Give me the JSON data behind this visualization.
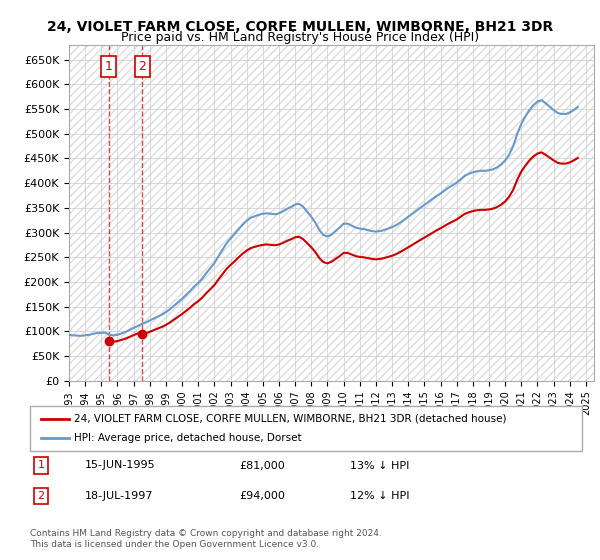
{
  "title1": "24, VIOLET FARM CLOSE, CORFE MULLEN, WIMBORNE, BH21 3DR",
  "title2": "Price paid vs. HM Land Registry's House Price Index (HPI)",
  "ylabel_ticks": [
    "£0",
    "£50K",
    "£100K",
    "£150K",
    "£200K",
    "£250K",
    "£300K",
    "£350K",
    "£400K",
    "£450K",
    "£500K",
    "£550K",
    "£600K",
    "£650K"
  ],
  "ytick_values": [
    0,
    50000,
    100000,
    150000,
    200000,
    250000,
    300000,
    350000,
    400000,
    450000,
    500000,
    550000,
    600000,
    650000
  ],
  "ylim": [
    0,
    680000
  ],
  "xlim_start": 1993.0,
  "xlim_end": 2025.5,
  "sale1_year": 1995.45,
  "sale1_price": 81000,
  "sale2_year": 1997.54,
  "sale2_price": 94000,
  "sale1_label": "1",
  "sale2_label": "2",
  "legend_line1": "24, VIOLET FARM CLOSE, CORFE MULLEN, WIMBORNE, BH21 3DR (detached house)",
  "legend_line2": "HPI: Average price, detached house, Dorset",
  "table_row1": "1    15-JUN-1995    £81,000    13% ↓ HPI",
  "table_row2": "2    18-JUL-1997    £94,000    12% ↓ HPI",
  "footer": "Contains HM Land Registry data © Crown copyright and database right 2024.\nThis data is licensed under the Open Government Licence v3.0.",
  "line_color_red": "#cc0000",
  "line_color_blue": "#6699cc",
  "bg_hatch_color": "#e8e8e8",
  "grid_color": "#cccccc",
  "hpi_data": {
    "years": [
      1993.0,
      1993.25,
      1993.5,
      1993.75,
      1994.0,
      1994.25,
      1994.5,
      1994.75,
      1995.0,
      1995.25,
      1995.5,
      1995.75,
      1996.0,
      1996.25,
      1996.5,
      1996.75,
      1997.0,
      1997.25,
      1997.5,
      1997.75,
      1998.0,
      1998.25,
      1998.5,
      1998.75,
      1999.0,
      1999.25,
      1999.5,
      1999.75,
      2000.0,
      2000.25,
      2000.5,
      2000.75,
      2001.0,
      2001.25,
      2001.5,
      2001.75,
      2002.0,
      2002.25,
      2002.5,
      2002.75,
      2003.0,
      2003.25,
      2003.5,
      2003.75,
      2004.0,
      2004.25,
      2004.5,
      2004.75,
      2005.0,
      2005.25,
      2005.5,
      2005.75,
      2006.0,
      2006.25,
      2006.5,
      2006.75,
      2007.0,
      2007.25,
      2007.5,
      2007.75,
      2008.0,
      2008.25,
      2008.5,
      2008.75,
      2009.0,
      2009.25,
      2009.5,
      2009.75,
      2010.0,
      2010.25,
      2010.5,
      2010.75,
      2011.0,
      2011.25,
      2011.5,
      2011.75,
      2012.0,
      2012.25,
      2012.5,
      2012.75,
      2013.0,
      2013.25,
      2013.5,
      2013.75,
      2014.0,
      2014.25,
      2014.5,
      2014.75,
      2015.0,
      2015.25,
      2015.5,
      2015.75,
      2016.0,
      2016.25,
      2016.5,
      2016.75,
      2017.0,
      2017.25,
      2017.5,
      2017.75,
      2018.0,
      2018.25,
      2018.5,
      2018.75,
      2019.0,
      2019.25,
      2019.5,
      2019.75,
      2020.0,
      2020.25,
      2020.5,
      2020.75,
      2021.0,
      2021.25,
      2021.5,
      2021.75,
      2022.0,
      2022.25,
      2022.5,
      2022.75,
      2023.0,
      2023.25,
      2023.5,
      2023.75,
      2024.0,
      2024.25,
      2024.5
    ],
    "values": [
      93000,
      92000,
      91500,
      91000,
      92000,
      93000,
      95000,
      97000,
      97000,
      97500,
      93000,
      92000,
      93000,
      96000,
      99000,
      103000,
      107000,
      111000,
      115000,
      118000,
      122000,
      126000,
      130000,
      134000,
      139000,
      145000,
      152000,
      159000,
      166000,
      174000,
      182000,
      191000,
      198000,
      207000,
      218000,
      228000,
      238000,
      252000,
      265000,
      278000,
      288000,
      297000,
      307000,
      316000,
      324000,
      330000,
      333000,
      336000,
      338000,
      339000,
      338000,
      337000,
      339000,
      343000,
      348000,
      352000,
      357000,
      358000,
      352000,
      342000,
      332000,
      320000,
      305000,
      295000,
      292000,
      296000,
      303000,
      310000,
      318000,
      318000,
      314000,
      310000,
      308000,
      307000,
      305000,
      303000,
      302000,
      303000,
      305000,
      308000,
      311000,
      315000,
      320000,
      326000,
      332000,
      338000,
      344000,
      350000,
      356000,
      362000,
      368000,
      374000,
      379000,
      385000,
      391000,
      396000,
      401000,
      408000,
      415000,
      419000,
      422000,
      424000,
      425000,
      425000,
      426000,
      428000,
      432000,
      438000,
      446000,
      458000,
      475000,
      500000,
      520000,
      535000,
      548000,
      558000,
      565000,
      568000,
      562000,
      555000,
      548000,
      542000,
      540000,
      540000,
      543000,
      548000,
      554000
    ]
  }
}
